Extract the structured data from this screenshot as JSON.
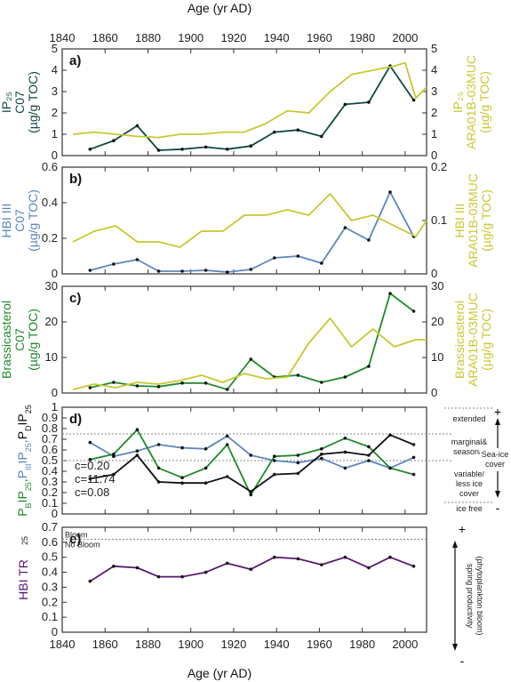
{
  "colors": {
    "dark_teal": "#0e4a42",
    "olive": "#c8c831",
    "steel_blue": "#5b86c0",
    "green": "#1f8a2b",
    "black": "#111111",
    "purple": "#5a1a72",
    "axis": "#333333",
    "dotted": "#888888"
  },
  "chart_data": [
    {
      "type": "line",
      "panel": "a)",
      "xlabel_top": "Age (yr AD)",
      "xlim": [
        1840,
        2010
      ],
      "xticks": [
        "1840",
        "1860",
        "1880",
        "1900",
        "1920",
        "1940",
        "1960",
        "1980",
        "2000"
      ],
      "ylabel_left": [
        "IP₂₅",
        "C07",
        "(µg/g TOC)"
      ],
      "ylabel_right": [
        "IP₂₅",
        "ARA01B-03MUC",
        "(µg/g TOC)"
      ],
      "ylim_left": [
        0,
        5
      ],
      "yticks_left": [
        "0",
        "1",
        "2",
        "3",
        "4",
        "5"
      ],
      "ylim_right": [
        0,
        5
      ],
      "yticks_right": [
        "0",
        "1",
        "2",
        "3",
        "4",
        "5"
      ],
      "series": [
        {
          "axis": "left",
          "color": "dark_teal",
          "markers": true,
          "x": [
            1853,
            1864,
            1875,
            1885,
            1896,
            1907,
            1917,
            1928,
            1939,
            1950,
            1961,
            1972,
            1983,
            1993,
            2004
          ],
          "y": [
            0.3,
            0.7,
            1.4,
            0.25,
            0.3,
            0.4,
            0.3,
            0.45,
            1.1,
            1.2,
            0.9,
            2.4,
            2.5,
            4.2,
            2.6
          ]
        },
        {
          "axis": "right",
          "color": "olive",
          "markers": false,
          "x": [
            1845,
            1855,
            1865,
            1875,
            1885,
            1895,
            1905,
            1915,
            1925,
            1935,
            1945,
            1955,
            1965,
            1975,
            1985,
            1995,
            2000,
            2005,
            2010
          ],
          "y": [
            1.0,
            1.1,
            1.0,
            0.9,
            0.85,
            1.0,
            1.0,
            1.1,
            1.1,
            1.5,
            2.1,
            2.0,
            3.0,
            3.8,
            4.0,
            4.2,
            4.35,
            2.7,
            3.2
          ]
        }
      ]
    },
    {
      "type": "line",
      "panel": "b)",
      "ylabel_left": [
        "HBI III",
        "C07",
        "(µg/g TOC)"
      ],
      "ylabel_right": [
        "HBI III",
        "ARA01B-03MUC",
        "(µg/g TOC)"
      ],
      "ylim_left": [
        0,
        0.6
      ],
      "yticks_left": [
        "0",
        "0.2",
        "0.4",
        "0.6"
      ],
      "ylim_right": [
        0,
        0.2
      ],
      "yticks_right": [
        "0",
        "0.1",
        "0.2"
      ],
      "series": [
        {
          "axis": "left",
          "color": "steel_blue",
          "markers": true,
          "x": [
            1853,
            1864,
            1875,
            1885,
            1896,
            1907,
            1917,
            1928,
            1939,
            1950,
            1961,
            1972,
            1983,
            1993,
            2004
          ],
          "y": [
            0.02,
            0.055,
            0.08,
            0.015,
            0.015,
            0.02,
            0.01,
            0.025,
            0.09,
            0.1,
            0.06,
            0.26,
            0.19,
            0.46,
            0.21
          ]
        },
        {
          "axis": "right",
          "color": "olive",
          "markers": false,
          "x": [
            1845,
            1855,
            1865,
            1875,
            1885,
            1895,
            1905,
            1915,
            1925,
            1935,
            1945,
            1955,
            1965,
            1975,
            1985,
            1995,
            2005,
            2010
          ],
          "y": [
            0.06,
            0.08,
            0.09,
            0.06,
            0.06,
            0.05,
            0.08,
            0.08,
            0.11,
            0.11,
            0.12,
            0.11,
            0.15,
            0.1,
            0.11,
            0.09,
            0.07,
            0.1
          ]
        }
      ]
    },
    {
      "type": "line",
      "panel": "c)",
      "ylabel_left": [
        "Brassicasterol",
        "C07",
        "(µg/g TOC)"
      ],
      "ylabel_right": [
        "Brassicasterol",
        "ARA01B-03MUC",
        "(µg/g TOC)"
      ],
      "ylim_left": [
        0,
        30
      ],
      "yticks_left": [
        "0",
        "10",
        "20",
        "30"
      ],
      "ylim_right": [
        0,
        30
      ],
      "yticks_right": [
        "0",
        "10",
        "20",
        "30"
      ],
      "series": [
        {
          "axis": "left",
          "color": "green",
          "markers": true,
          "x": [
            1853,
            1864,
            1875,
            1885,
            1896,
            1907,
            1917,
            1928,
            1939,
            1950,
            1961,
            1972,
            1983,
            1993,
            2004
          ],
          "y": [
            1.5,
            3.0,
            2.0,
            1.8,
            2.8,
            2.8,
            1.0,
            9.5,
            4.5,
            5.0,
            3.0,
            4.5,
            7.5,
            28,
            23
          ]
        },
        {
          "axis": "right",
          "color": "olive",
          "markers": false,
          "x": [
            1845,
            1855,
            1865,
            1875,
            1885,
            1895,
            1905,
            1915,
            1925,
            1935,
            1945,
            1955,
            1965,
            1975,
            1985,
            1995,
            2005,
            2010
          ],
          "y": [
            1,
            2.5,
            1.5,
            3,
            2.5,
            3.5,
            5,
            3,
            5.5,
            4,
            4.5,
            14,
            21,
            13,
            18,
            13,
            15,
            15
          ]
        }
      ]
    },
    {
      "type": "line",
      "panel": "d)",
      "ylim": [
        0,
        1
      ],
      "yticks": [
        "0",
        "0.1",
        "0.2",
        "0.3",
        "0.4",
        "0.5",
        "0.6",
        "0.7",
        "0.8",
        "0.9",
        "1"
      ],
      "ylabel_left": [
        "P",
        "B",
        "IP",
        "25",
        ",",
        "P",
        "III",
        "IP",
        "25",
        ",",
        "P",
        "D",
        "IP",
        "25"
      ],
      "c_labels": [
        "c=0.20",
        "c=11.74",
        "c=0.08"
      ],
      "thresholds": [
        0.75,
        0.5
      ],
      "right_labels": [
        "extended",
        "marginal&",
        "seasonal",
        "variable/",
        "less ice",
        "cover",
        "ice free",
        "Sea-ice",
        "cover",
        "+",
        "-"
      ],
      "series": [
        {
          "color": "steel_blue",
          "markers": true,
          "x": [
            1853,
            1864,
            1875,
            1885,
            1896,
            1907,
            1917,
            1928,
            1939,
            1950,
            1961,
            1972,
            1983,
            1993,
            2004
          ],
          "y": [
            0.67,
            0.54,
            0.59,
            0.65,
            0.62,
            0.61,
            0.73,
            0.55,
            0.5,
            0.48,
            0.52,
            0.43,
            0.5,
            0.43,
            0.53
          ]
        },
        {
          "color": "green",
          "markers": true,
          "x": [
            1853,
            1864,
            1875,
            1885,
            1896,
            1907,
            1917,
            1928,
            1939,
            1950,
            1961,
            1972,
            1983,
            1993,
            2004
          ],
          "y": [
            0.51,
            0.56,
            0.79,
            0.43,
            0.34,
            0.43,
            0.65,
            0.18,
            0.54,
            0.55,
            0.61,
            0.71,
            0.63,
            0.43,
            0.37
          ]
        },
        {
          "color": "black",
          "markers": true,
          "x": [
            1853,
            1864,
            1875,
            1885,
            1896,
            1907,
            1917,
            1928,
            1939,
            1950,
            1961,
            1972,
            1983,
            1993,
            2004
          ],
          "y": [
            0.33,
            0.37,
            0.55,
            0.3,
            0.29,
            0.29,
            0.35,
            0.21,
            0.37,
            0.38,
            0.56,
            0.58,
            0.55,
            0.74,
            0.65
          ]
        }
      ]
    },
    {
      "type": "line",
      "panel": "e)",
      "ylim": [
        0,
        0.7
      ],
      "yticks": [
        "0",
        "0.1",
        "0.2",
        "0.3",
        "0.4",
        "0.5",
        "0.6",
        "0.7"
      ],
      "ylabel_left": [
        "HBI TR",
        "25"
      ],
      "threshold": 0.62,
      "bloom_labels": [
        "Bloom",
        "No Bloom"
      ],
      "right_labels": [
        "spring productivity",
        "(phytoplankton bloom)",
        "+",
        "-"
      ],
      "xlabel_bottom": "Age (yr AD)",
      "series": [
        {
          "color": "purple",
          "markers": true,
          "x": [
            1853,
            1864,
            1875,
            1885,
            1896,
            1907,
            1917,
            1928,
            1939,
            1950,
            1961,
            1972,
            1983,
            1993,
            2004
          ],
          "y": [
            0.34,
            0.44,
            0.43,
            0.37,
            0.37,
            0.4,
            0.46,
            0.42,
            0.5,
            0.49,
            0.45,
            0.5,
            0.43,
            0.5,
            0.44
          ]
        }
      ]
    }
  ]
}
